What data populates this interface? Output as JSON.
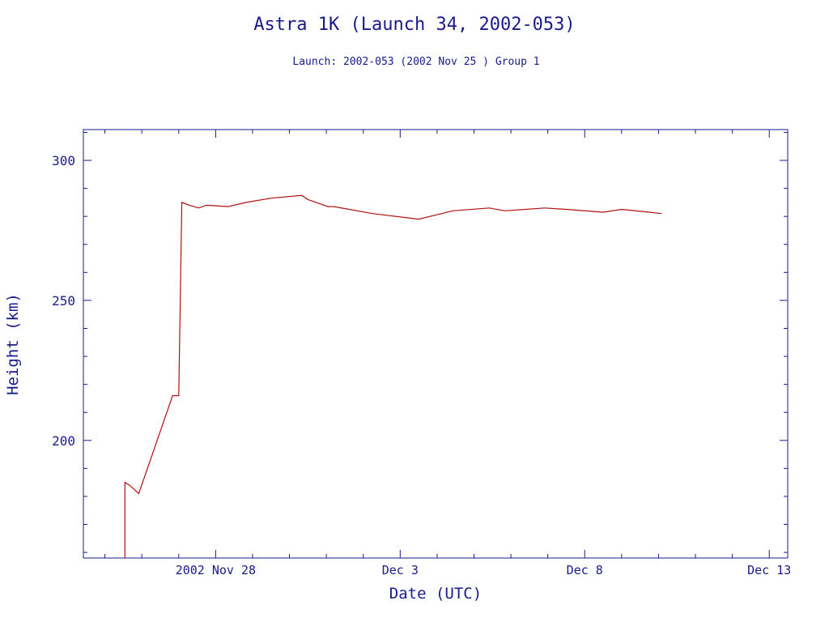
{
  "chart_data": {
    "type": "line",
    "title": "Astra 1K (Launch 34, 2002-053)",
    "subtitle": "Launch: 2002-053  (2002 Nov 25 )  Group 1",
    "xlabel": "Date (UTC)",
    "ylabel": "Height (km)",
    "xlim": [
      "2002-11-24T10:00",
      "2002-12-13T12:00"
    ],
    "ylim": [
      158,
      311
    ],
    "x_ticks": [
      {
        "date": "2002-11-28",
        "label": "2002 Nov 28"
      },
      {
        "date": "2002-12-03",
        "label": "Dec  3"
      },
      {
        "date": "2002-12-08",
        "label": "Dec  8"
      },
      {
        "date": "2002-12-13",
        "label": "Dec 13"
      }
    ],
    "y_ticks": [
      200,
      250,
      300
    ],
    "grid": false,
    "colors": {
      "axis": "#1a1a8c",
      "series": "#b01010",
      "background": "#ffffff"
    },
    "series": [
      {
        "x": [
          "2002-11-25T13:00",
          "2002-11-25T13:00",
          "2002-11-25T16:00",
          "2002-11-25T22:00",
          "2002-11-26T20:00",
          "2002-11-27T00:00",
          "2002-11-27T02:00",
          "2002-11-27T07:00",
          "2002-11-27T13:00",
          "2002-11-27T18:00",
          "2002-11-28T08:00",
          "2002-11-28T20:00",
          "2002-11-29T12:00",
          "2002-11-30T08:00",
          "2002-11-30T12:00",
          "2002-12-01T01:00",
          "2002-12-01T05:00",
          "2002-12-02T06:00",
          "2002-12-03T12:00",
          "2002-12-04T03:00",
          "2002-12-04T10:00",
          "2002-12-05T10:00",
          "2002-12-05T20:00",
          "2002-12-06T22:00",
          "2002-12-07T12:00",
          "2002-12-08T12:00",
          "2002-12-09T00:00",
          "2002-12-09T18:00",
          "2002-12-10T02:00"
        ],
        "y": [
          158,
          185,
          184,
          181,
          216,
          216,
          285,
          284,
          283,
          284,
          283.5,
          285,
          286.5,
          287.5,
          286,
          283.5,
          283.5,
          281,
          279,
          281,
          282,
          283,
          282,
          283,
          282.5,
          281.5,
          282.5,
          281.5,
          281
        ]
      }
    ]
  }
}
